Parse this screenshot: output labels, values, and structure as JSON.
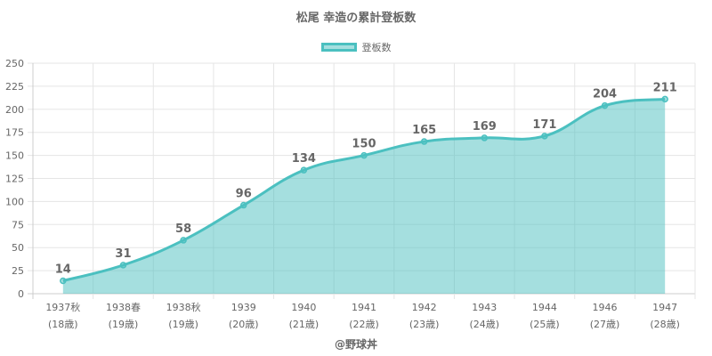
{
  "chart_data": {
    "type": "area",
    "title": "松尾 幸造の累計登板数",
    "legend": {
      "label": "登板数",
      "position": "top"
    },
    "credit": "@野球丼",
    "categories": [
      [
        "1937秋",
        "(18歳)"
      ],
      [
        "1938春",
        "(19歳)"
      ],
      [
        "1938秋",
        "(19歳)"
      ],
      [
        "1939",
        "(20歳)"
      ],
      [
        "1940",
        "(21歳)"
      ],
      [
        "1941",
        "(22歳)"
      ],
      [
        "1942",
        "(23歳)"
      ],
      [
        "1943",
        "(24歳)"
      ],
      [
        "1944",
        "(25歳)"
      ],
      [
        "1946",
        "(27歳)"
      ],
      [
        "1947",
        "(28歳)"
      ]
    ],
    "values": [
      14,
      31,
      58,
      96,
      134,
      150,
      165,
      169,
      171,
      204,
      211
    ],
    "ylim": [
      0,
      250
    ],
    "yticks": [
      0,
      25,
      50,
      75,
      100,
      125,
      150,
      175,
      200,
      225,
      250
    ],
    "grid": true,
    "colors": {
      "line": "#4bc0c0",
      "fill": "rgba(75,192,192,0.5)",
      "grid": "#e5e5e5",
      "text": "#666666"
    }
  }
}
